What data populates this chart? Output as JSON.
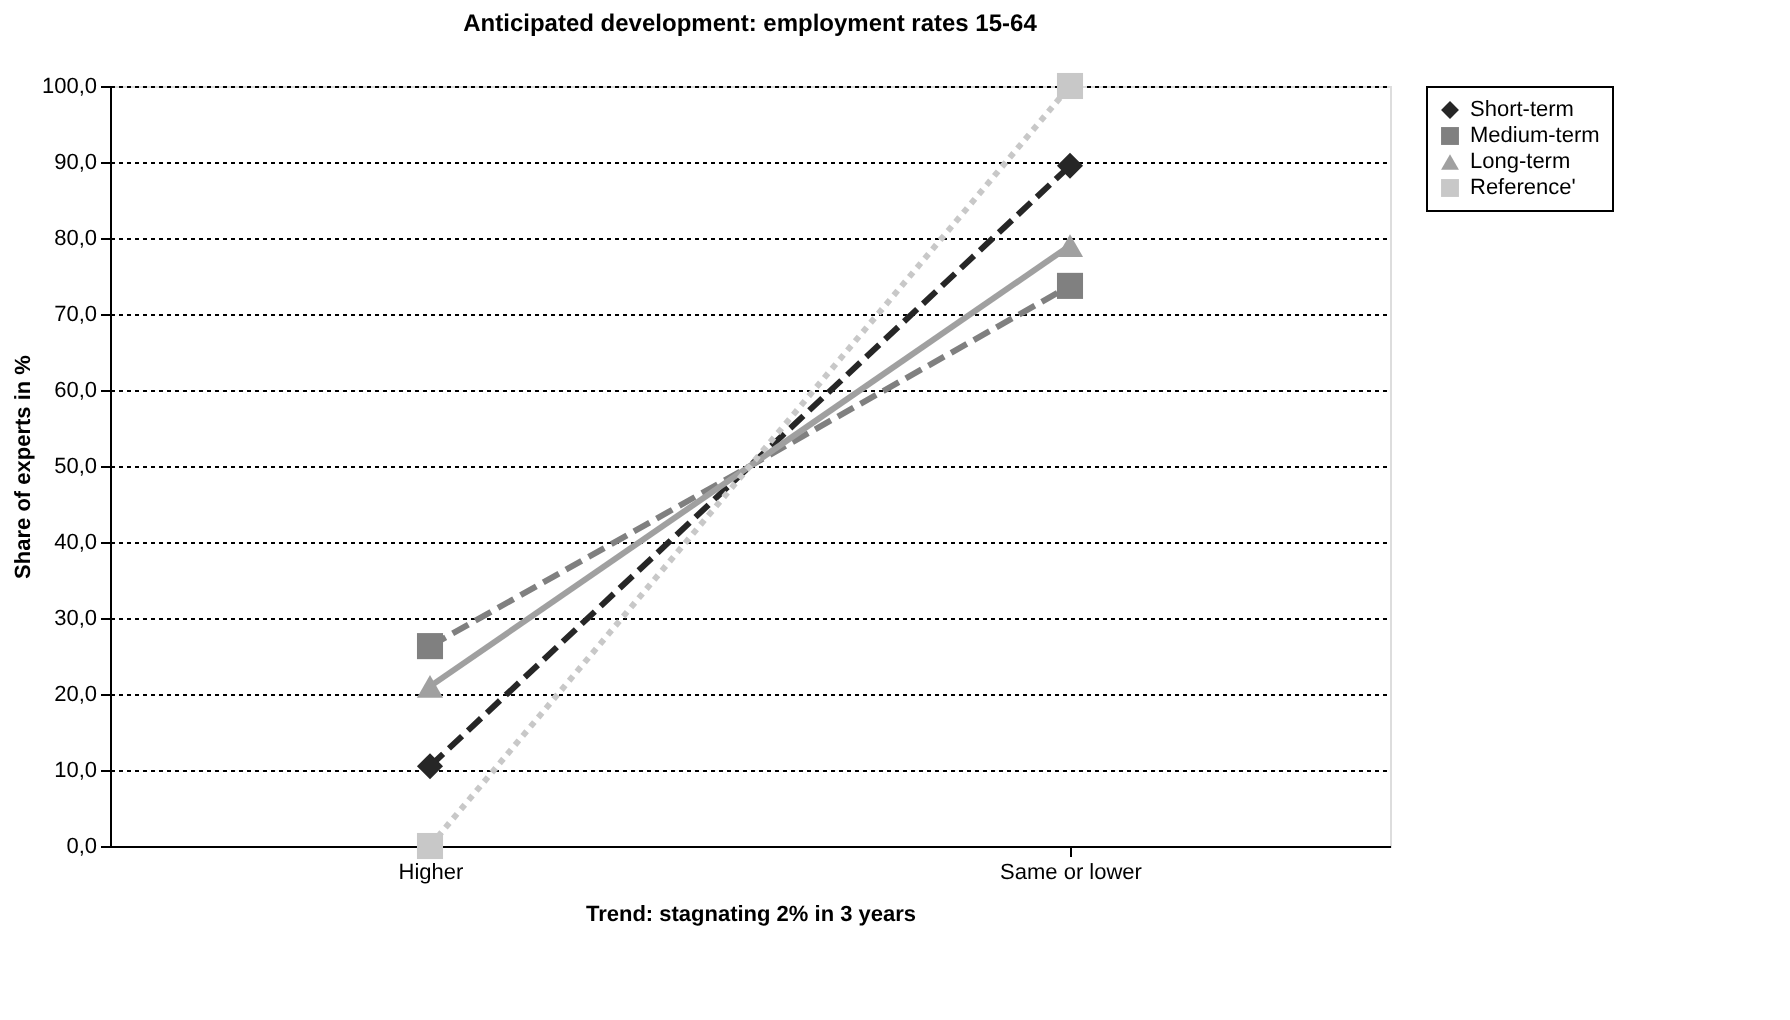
{
  "chart_data": {
    "type": "line",
    "title": "Anticipated development: employment rates 15-64",
    "xlabel": "Trend: stagnating 2% in 3 years",
    "ylabel": "Share of experts in %",
    "categories": [
      "Higher",
      "Same or lower"
    ],
    "series": [
      {
        "name": "Short-term",
        "color": "#262626",
        "values": [
          10.5,
          89.5
        ],
        "marker": "diamond",
        "line_style": "dashed"
      },
      {
        "name": "Medium-term",
        "color": "#808080",
        "values": [
          26.3,
          73.7
        ],
        "marker": "square",
        "line_style": "dashed"
      },
      {
        "name": "Long-term",
        "color": "#a0a0a0",
        "values": [
          21.0,
          79.0
        ],
        "marker": "triangle",
        "line_style": "solid"
      },
      {
        "name": "Reference'",
        "color": "#c8c8c8",
        "values": [
          0.0,
          100.0
        ],
        "marker": "square",
        "line_style": "dotted"
      }
    ],
    "ylim": [
      0,
      100
    ],
    "yticks": [
      {
        "value": 0,
        "label": "0,0"
      },
      {
        "value": 10,
        "label": "10,0"
      },
      {
        "value": 20,
        "label": "20,0"
      },
      {
        "value": 30,
        "label": "30,0"
      },
      {
        "value": 40,
        "label": "40,0"
      },
      {
        "value": 50,
        "label": "50,0"
      },
      {
        "value": 60,
        "label": "60,0"
      },
      {
        "value": 70,
        "label": "70,0"
      },
      {
        "value": 80,
        "label": "80,0"
      },
      {
        "value": 90,
        "label": "90,0"
      },
      {
        "value": 100,
        "label": "100,0"
      }
    ],
    "grid": "y",
    "legend": "right"
  }
}
